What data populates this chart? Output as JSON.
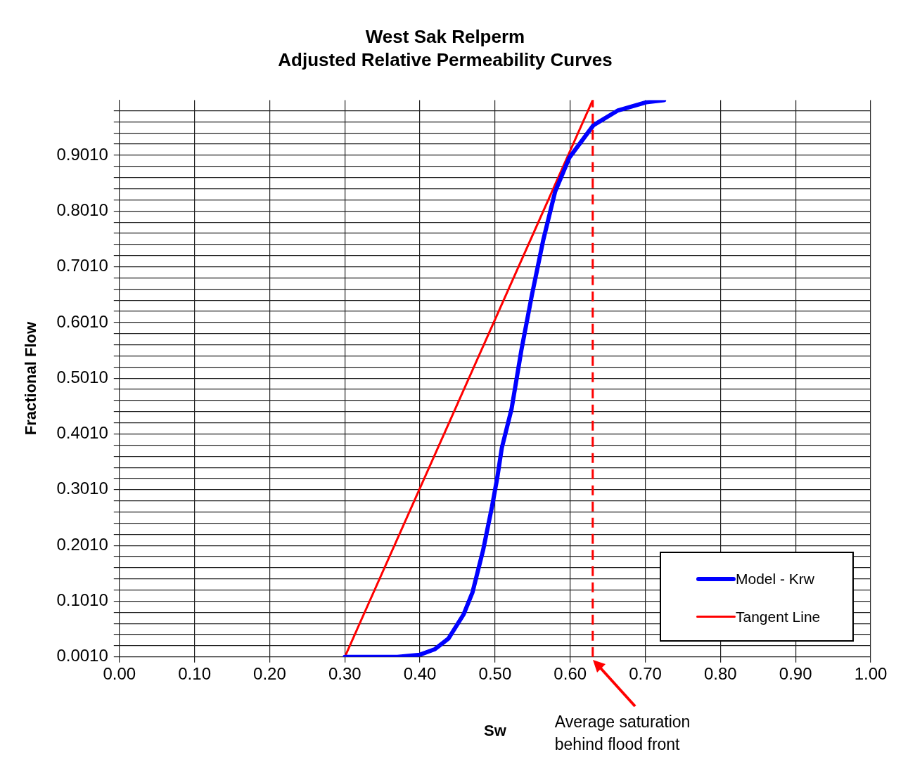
{
  "chart_data": {
    "type": "line",
    "title": "West Sak Relperm",
    "subtitle": "Adjusted Relative Permeability Curves",
    "xlabel": "Sw",
    "ylabel": "Fractional Flow",
    "xlim": [
      0,
      1
    ],
    "xticks": [
      {
        "value": 0,
        "label": "0.00"
      },
      {
        "value": 0.1,
        "label": "0.10"
      },
      {
        "value": 0.2,
        "label": "0.20"
      },
      {
        "value": 0.3,
        "label": "0.30"
      },
      {
        "value": 0.4,
        "label": "0.40"
      },
      {
        "value": 0.5,
        "label": "0.50"
      },
      {
        "value": 0.6,
        "label": "0.60"
      },
      {
        "value": 0.7,
        "label": "0.70"
      },
      {
        "value": 0.8,
        "label": "0.80"
      },
      {
        "value": 0.9,
        "label": "0.90"
      },
      {
        "value": 1,
        "label": "1.00"
      }
    ],
    "ylim": [
      0.001,
      1.0
    ],
    "yticks": [
      {
        "value": 0.001,
        "label": "0.0010"
      },
      {
        "value": 0.021,
        "label": null
      },
      {
        "value": 0.041,
        "label": null
      },
      {
        "value": 0.061,
        "label": null
      },
      {
        "value": 0.081,
        "label": null
      },
      {
        "value": 0.101,
        "label": "0.1010"
      },
      {
        "value": 0.121,
        "label": null
      },
      {
        "value": 0.141,
        "label": null
      },
      {
        "value": 0.161,
        "label": null
      },
      {
        "value": 0.181,
        "label": null
      },
      {
        "value": 0.201,
        "label": "0.2010"
      },
      {
        "value": 0.221,
        "label": null
      },
      {
        "value": 0.241,
        "label": null
      },
      {
        "value": 0.261,
        "label": null
      },
      {
        "value": 0.281,
        "label": null
      },
      {
        "value": 0.301,
        "label": "0.3010"
      },
      {
        "value": 0.321,
        "label": null
      },
      {
        "value": 0.341,
        "label": null
      },
      {
        "value": 0.361,
        "label": null
      },
      {
        "value": 0.381,
        "label": null
      },
      {
        "value": 0.401,
        "label": "0.4010"
      },
      {
        "value": 0.421,
        "label": null
      },
      {
        "value": 0.441,
        "label": null
      },
      {
        "value": 0.461,
        "label": null
      },
      {
        "value": 0.481,
        "label": null
      },
      {
        "value": 0.501,
        "label": "0.5010"
      },
      {
        "value": 0.521,
        "label": null
      },
      {
        "value": 0.541,
        "label": null
      },
      {
        "value": 0.561,
        "label": null
      },
      {
        "value": 0.581,
        "label": null
      },
      {
        "value": 0.601,
        "label": "0.6010"
      },
      {
        "value": 0.621,
        "label": null
      },
      {
        "value": 0.641,
        "label": null
      },
      {
        "value": 0.661,
        "label": null
      },
      {
        "value": 0.681,
        "label": null
      },
      {
        "value": 0.701,
        "label": "0.7010"
      },
      {
        "value": 0.721,
        "label": null
      },
      {
        "value": 0.741,
        "label": null
      },
      {
        "value": 0.761,
        "label": null
      },
      {
        "value": 0.781,
        "label": null
      },
      {
        "value": 0.801,
        "label": "0.8010"
      },
      {
        "value": 0.821,
        "label": null
      },
      {
        "value": 0.841,
        "label": null
      },
      {
        "value": 0.861,
        "label": null
      },
      {
        "value": 0.881,
        "label": null
      },
      {
        "value": 0.901,
        "label": "0.9010"
      },
      {
        "value": 0.921,
        "label": null
      },
      {
        "value": 0.941,
        "label": null
      },
      {
        "value": 0.961,
        "label": null
      },
      {
        "value": 0.981,
        "label": null
      }
    ],
    "grid": true,
    "legend": "bottom right",
    "marker": "none",
    "series": [
      {
        "name": "Model - Krw",
        "color": "#0000ff",
        "x": [
          0.3,
          0.37,
          0.4,
          0.42,
          0.438,
          0.458,
          0.47,
          0.484,
          0.496,
          0.503,
          0.509,
          0.522,
          0.535,
          0.549,
          0.564,
          0.58,
          0.599,
          0.631,
          0.663,
          0.701,
          0.725
        ],
        "values": [
          0.001,
          0.001,
          0.005,
          0.015,
          0.034,
          0.077,
          0.117,
          0.192,
          0.271,
          0.323,
          0.376,
          0.446,
          0.551,
          0.65,
          0.748,
          0.836,
          0.897,
          0.955,
          0.981,
          0.996,
          1.0
        ]
      },
      {
        "name": "Tangent Line",
        "color": "#ff0000",
        "x": [
          0.3,
          0.63
        ],
        "values": [
          0.001,
          1.0
        ]
      }
    ],
    "ref_lines": [
      {
        "axis": "x",
        "value": 0.63,
        "color": "#ff0000",
        "line_style": "dashed"
      }
    ],
    "annotations": [
      {
        "text": "Average saturation behind flood front",
        "x": 0.63,
        "y": 0.001
      }
    ]
  }
}
